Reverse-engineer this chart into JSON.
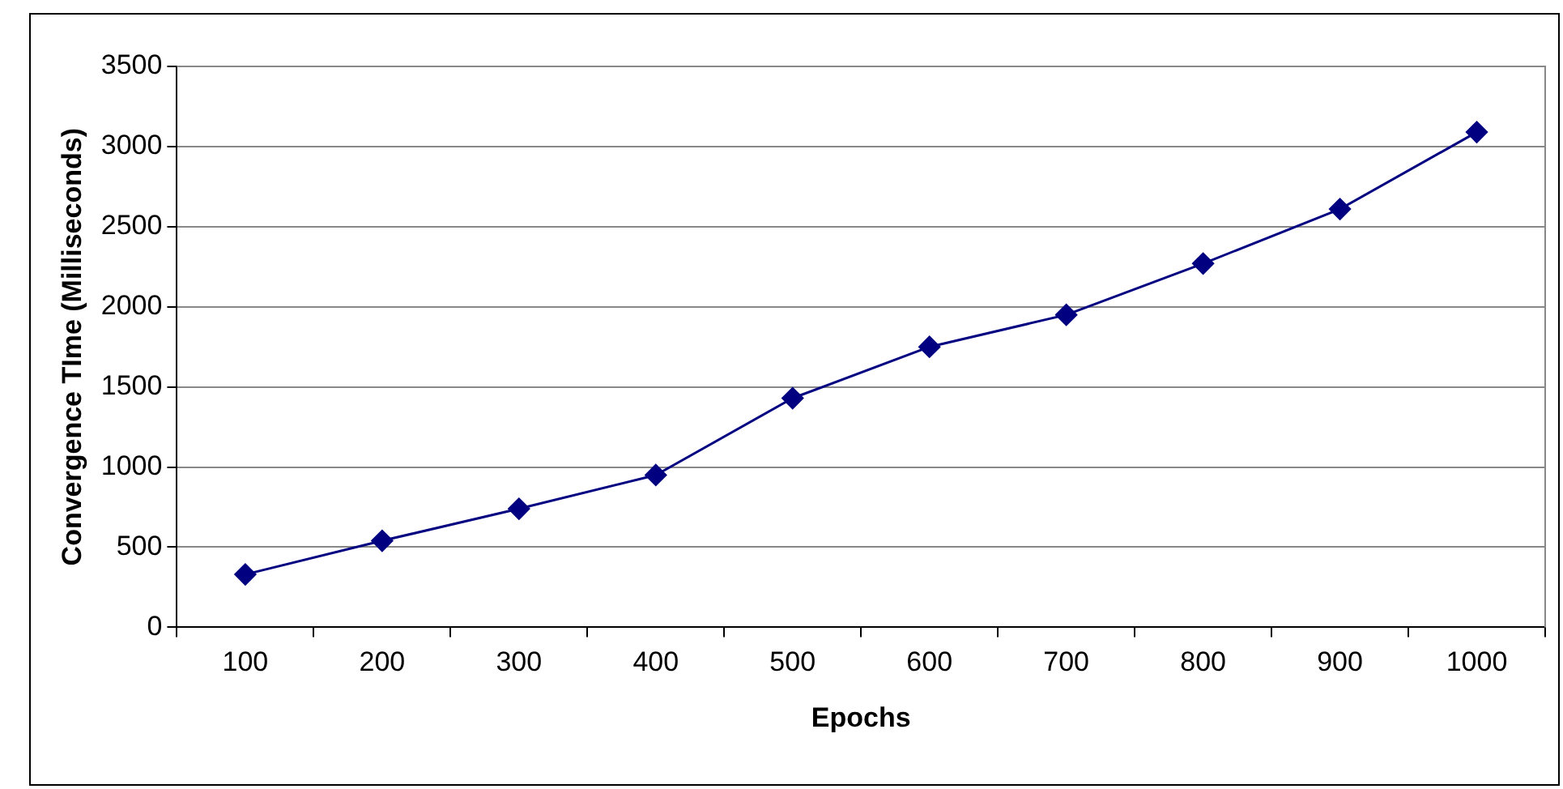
{
  "chart_data": {
    "type": "line",
    "xlabel": "Epochs",
    "ylabel": "Convergence TIme (Milliseconds)",
    "categories": [
      "100",
      "200",
      "300",
      "400",
      "500",
      "600",
      "700",
      "800",
      "900",
      "1000"
    ],
    "series": [
      {
        "color": "#000080",
        "values": [
          330,
          540,
          740,
          950,
          1430,
          1750,
          1950,
          2270,
          2610,
          3090
        ]
      }
    ],
    "ylim": [
      0,
      3500
    ],
    "yticks": [
      0,
      500,
      1000,
      1500,
      2000,
      2500,
      3000,
      3500
    ],
    "grid": "y",
    "legend": false,
    "marker": "diamond",
    "line_style": "solid"
  }
}
